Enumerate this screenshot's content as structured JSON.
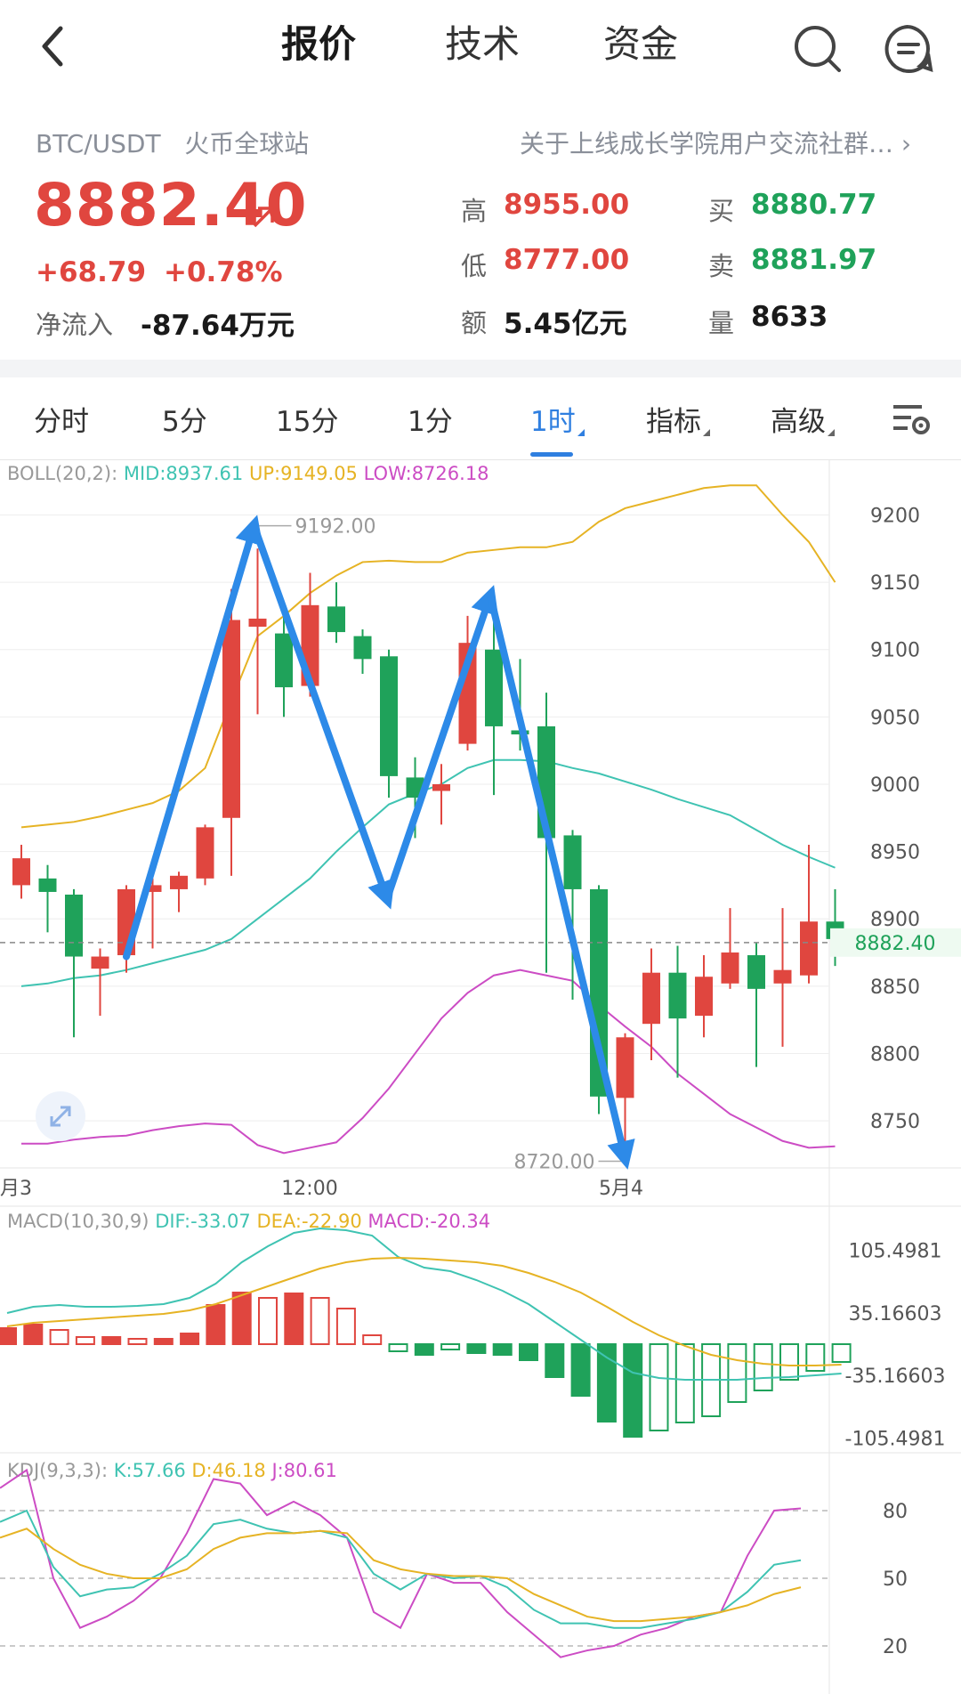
{
  "nav": {
    "tabs": [
      "报价",
      "技术",
      "资金"
    ],
    "active_tab": "报价"
  },
  "header": {
    "pair": "BTC/USDT",
    "exchange": "火币全球站",
    "notice": "关于上线成长学院用户交流社群…",
    "price": "8882.40",
    "change": "+68.79",
    "change_pct": "+0.78%",
    "net_inflow_label": "净流入",
    "net_inflow": "-87.64万元",
    "stats": {
      "high_label": "高",
      "high": "8955.00",
      "low_label": "低",
      "low": "8777.00",
      "amount_label": "额",
      "amount": "5.45亿元",
      "buy_label": "买",
      "buy": "8880.77",
      "sell_label": "卖",
      "sell": "8881.97",
      "volume_label": "量",
      "volume": "8633"
    }
  },
  "period_tabs": [
    "分时",
    "5分",
    "15分",
    "1分",
    "1时",
    "指标",
    "高级"
  ],
  "active_period": "1时",
  "colors": {
    "up": "#e0463f",
    "down": "#1fa25a",
    "accent": "#2f7fe0",
    "mid": "#3fc3b2",
    "upper": "#e6b324",
    "lower": "#cc4cc4"
  },
  "boll": {
    "label": "BOLL(20,2):",
    "mid": "MID:8937.61",
    "up": "UP:9149.05",
    "low": "LOW:8726.18"
  },
  "macd": {
    "label": "MACD(10,30,9)",
    "dif": "DIF:-33.07",
    "dea": "DEA:-22.90",
    "macd": "MACD:-20.34"
  },
  "kdj": {
    "label": "KDJ(9,3,3):",
    "k": "K:57.66",
    "d": "D:46.18",
    "j": "J:80.61"
  },
  "chart_data": [
    {
      "type": "candlestick",
      "title": "BOLL(20,2)",
      "y_ticks": [
        9200,
        9150,
        9100,
        9050,
        9000,
        8950,
        8900,
        8850,
        8800,
        8750
      ],
      "ylim": [
        8715,
        9240
      ],
      "x_ticks": [
        "月3",
        "12:00",
        "5月4"
      ],
      "current_price_label": "8882.40",
      "high_marker": "9192.00",
      "low_marker": "8720.00",
      "candles": [
        {
          "o": 8925,
          "c": 8945,
          "h": 8955,
          "l": 8915
        },
        {
          "o": 8930,
          "c": 8920,
          "h": 8940,
          "l": 8890
        },
        {
          "o": 8918,
          "c": 8872,
          "h": 8922,
          "l": 8812
        },
        {
          "o": 8863,
          "c": 8872,
          "h": 8878,
          "l": 8828
        },
        {
          "o": 8873,
          "c": 8922,
          "h": 8925,
          "l": 8860
        },
        {
          "o": 8920,
          "c": 8925,
          "h": 8930,
          "l": 8878
        },
        {
          "o": 8922,
          "c": 8932,
          "h": 8935,
          "l": 8905
        },
        {
          "o": 8930,
          "c": 8968,
          "h": 8970,
          "l": 8925
        },
        {
          "o": 8975,
          "c": 9122,
          "h": 9145,
          "l": 8932
        },
        {
          "o": 9117,
          "c": 9123,
          "h": 9175,
          "l": 9052
        },
        {
          "o": 9112,
          "c": 9072,
          "h": 9130,
          "l": 9050
        },
        {
          "o": 9073,
          "c": 9133,
          "h": 9157,
          "l": 9065
        },
        {
          "o": 9132,
          "c": 9113,
          "h": 9150,
          "l": 9105
        },
        {
          "o": 9110,
          "c": 9093,
          "h": 9115,
          "l": 9082
        },
        {
          "o": 9095,
          "c": 9006,
          "h": 9100,
          "l": 8990
        },
        {
          "o": 9005,
          "c": 8990,
          "h": 9020,
          "l": 8960
        },
        {
          "o": 8995,
          "c": 9000,
          "h": 9015,
          "l": 8970
        },
        {
          "o": 9030,
          "c": 9105,
          "h": 9125,
          "l": 9025
        },
        {
          "o": 9100,
          "c": 9043,
          "h": 9130,
          "l": 8992
        },
        {
          "o": 9040,
          "c": 9037,
          "h": 9093,
          "l": 9025
        },
        {
          "o": 9043,
          "c": 8960,
          "h": 9068,
          "l": 8860
        },
        {
          "o": 8962,
          "c": 8922,
          "h": 8966,
          "l": 8840
        },
        {
          "o": 8922,
          "c": 8768,
          "h": 8925,
          "l": 8755
        },
        {
          "o": 8767,
          "c": 8812,
          "h": 8815,
          "l": 8722
        },
        {
          "o": 8822,
          "c": 8860,
          "h": 8878,
          "l": 8795
        },
        {
          "o": 8860,
          "c": 8826,
          "h": 8880,
          "l": 8782
        },
        {
          "o": 8828,
          "c": 8857,
          "h": 8873,
          "l": 8812
        },
        {
          "o": 8852,
          "c": 8875,
          "h": 8908,
          "l": 8848
        },
        {
          "o": 8873,
          "c": 8848,
          "h": 8882,
          "l": 8790
        },
        {
          "o": 8852,
          "c": 8862,
          "h": 8908,
          "l": 8805
        },
        {
          "o": 8858,
          "c": 8898,
          "h": 8955,
          "l": 8852
        },
        {
          "o": 8898,
          "c": 8885,
          "h": 8922,
          "l": 8865
        }
      ],
      "boll_mid": [
        8850,
        8852,
        8856,
        8858,
        8862,
        8867,
        8872,
        8877,
        8885,
        8900,
        8915,
        8930,
        8950,
        8968,
        8985,
        8993,
        9000,
        9012,
        9018,
        9018,
        9017,
        9012,
        9008,
        9002,
        8996,
        8989,
        8983,
        8977,
        8966,
        8955,
        8946,
        8938
      ],
      "boll_up": [
        8968,
        8970,
        8972,
        8976,
        8981,
        8986,
        8995,
        9012,
        9062,
        9110,
        9125,
        9142,
        9155,
        9165,
        9166,
        9165,
        9165,
        9172,
        9174,
        9176,
        9176,
        9180,
        9195,
        9205,
        9210,
        9215,
        9220,
        9222,
        9222,
        9200,
        9180,
        9150
      ],
      "boll_low": [
        8733,
        8733,
        8736,
        8738,
        8739,
        8743,
        8746,
        8748,
        8747,
        8732,
        8726,
        8730,
        8734,
        8752,
        8774,
        8800,
        8826,
        8845,
        8858,
        8862,
        8858,
        8854,
        8836,
        8820,
        8805,
        8785,
        8770,
        8755,
        8745,
        8735,
        8730,
        8731
      ],
      "annotations": "blue W-pattern arrows drawn over price action"
    },
    {
      "type": "bar",
      "title": "MACD(10,30,9)",
      "y_ticks": [
        "105.4981",
        "35.16603",
        "-35.16603",
        "-105.4981"
      ],
      "macd": [
        18,
        22,
        16,
        8,
        8,
        6,
        6,
        12,
        44,
        58,
        52,
        57,
        52,
        40,
        10,
        -8,
        -12,
        -6,
        -10,
        -12,
        -18,
        -37,
        -58,
        -87,
        -104,
        -97,
        -88,
        -81,
        -65,
        -52,
        -40,
        -30,
        -20
      ],
      "dif": [
        35,
        42,
        44,
        42,
        42,
        43,
        45,
        52,
        68,
        92,
        110,
        125,
        130,
        128,
        122,
        98,
        86,
        82,
        72,
        60,
        45,
        25,
        5,
        -15,
        -32,
        -38,
        -40,
        -40,
        -40,
        -38,
        -37,
        -35,
        -33
      ],
      "dea": [
        20,
        24,
        26,
        28,
        30,
        32,
        34,
        38,
        45,
        55,
        65,
        75,
        85,
        92,
        96,
        97,
        96,
        94,
        92,
        88,
        80,
        70,
        58,
        42,
        25,
        10,
        -2,
        -12,
        -18,
        -22,
        -24,
        -24,
        -23
      ]
    },
    {
      "type": "line",
      "title": "KDJ(9,3,3)",
      "y_ticks": [
        80,
        50,
        20
      ],
      "k": [
        75,
        80,
        55,
        42,
        45,
        46,
        52,
        60,
        74,
        76,
        72,
        70,
        71,
        68,
        52,
        45,
        52,
        50,
        51,
        46,
        36,
        30,
        30,
        28,
        28,
        30,
        32,
        35,
        44,
        56,
        58
      ],
      "d": [
        68,
        72,
        63,
        56,
        52,
        50,
        50,
        54,
        63,
        68,
        70,
        70,
        71,
        70,
        58,
        54,
        52,
        51,
        51,
        50,
        43,
        38,
        33,
        31,
        31,
        32,
        33,
        35,
        38,
        43,
        46
      ],
      "j": [
        90,
        98,
        50,
        28,
        33,
        40,
        50,
        70,
        94,
        92,
        78,
        84,
        78,
        68,
        35,
        28,
        52,
        48,
        48,
        35,
        25,
        15,
        18,
        20,
        25,
        28,
        33,
        35,
        60,
        80,
        81
      ]
    }
  ]
}
